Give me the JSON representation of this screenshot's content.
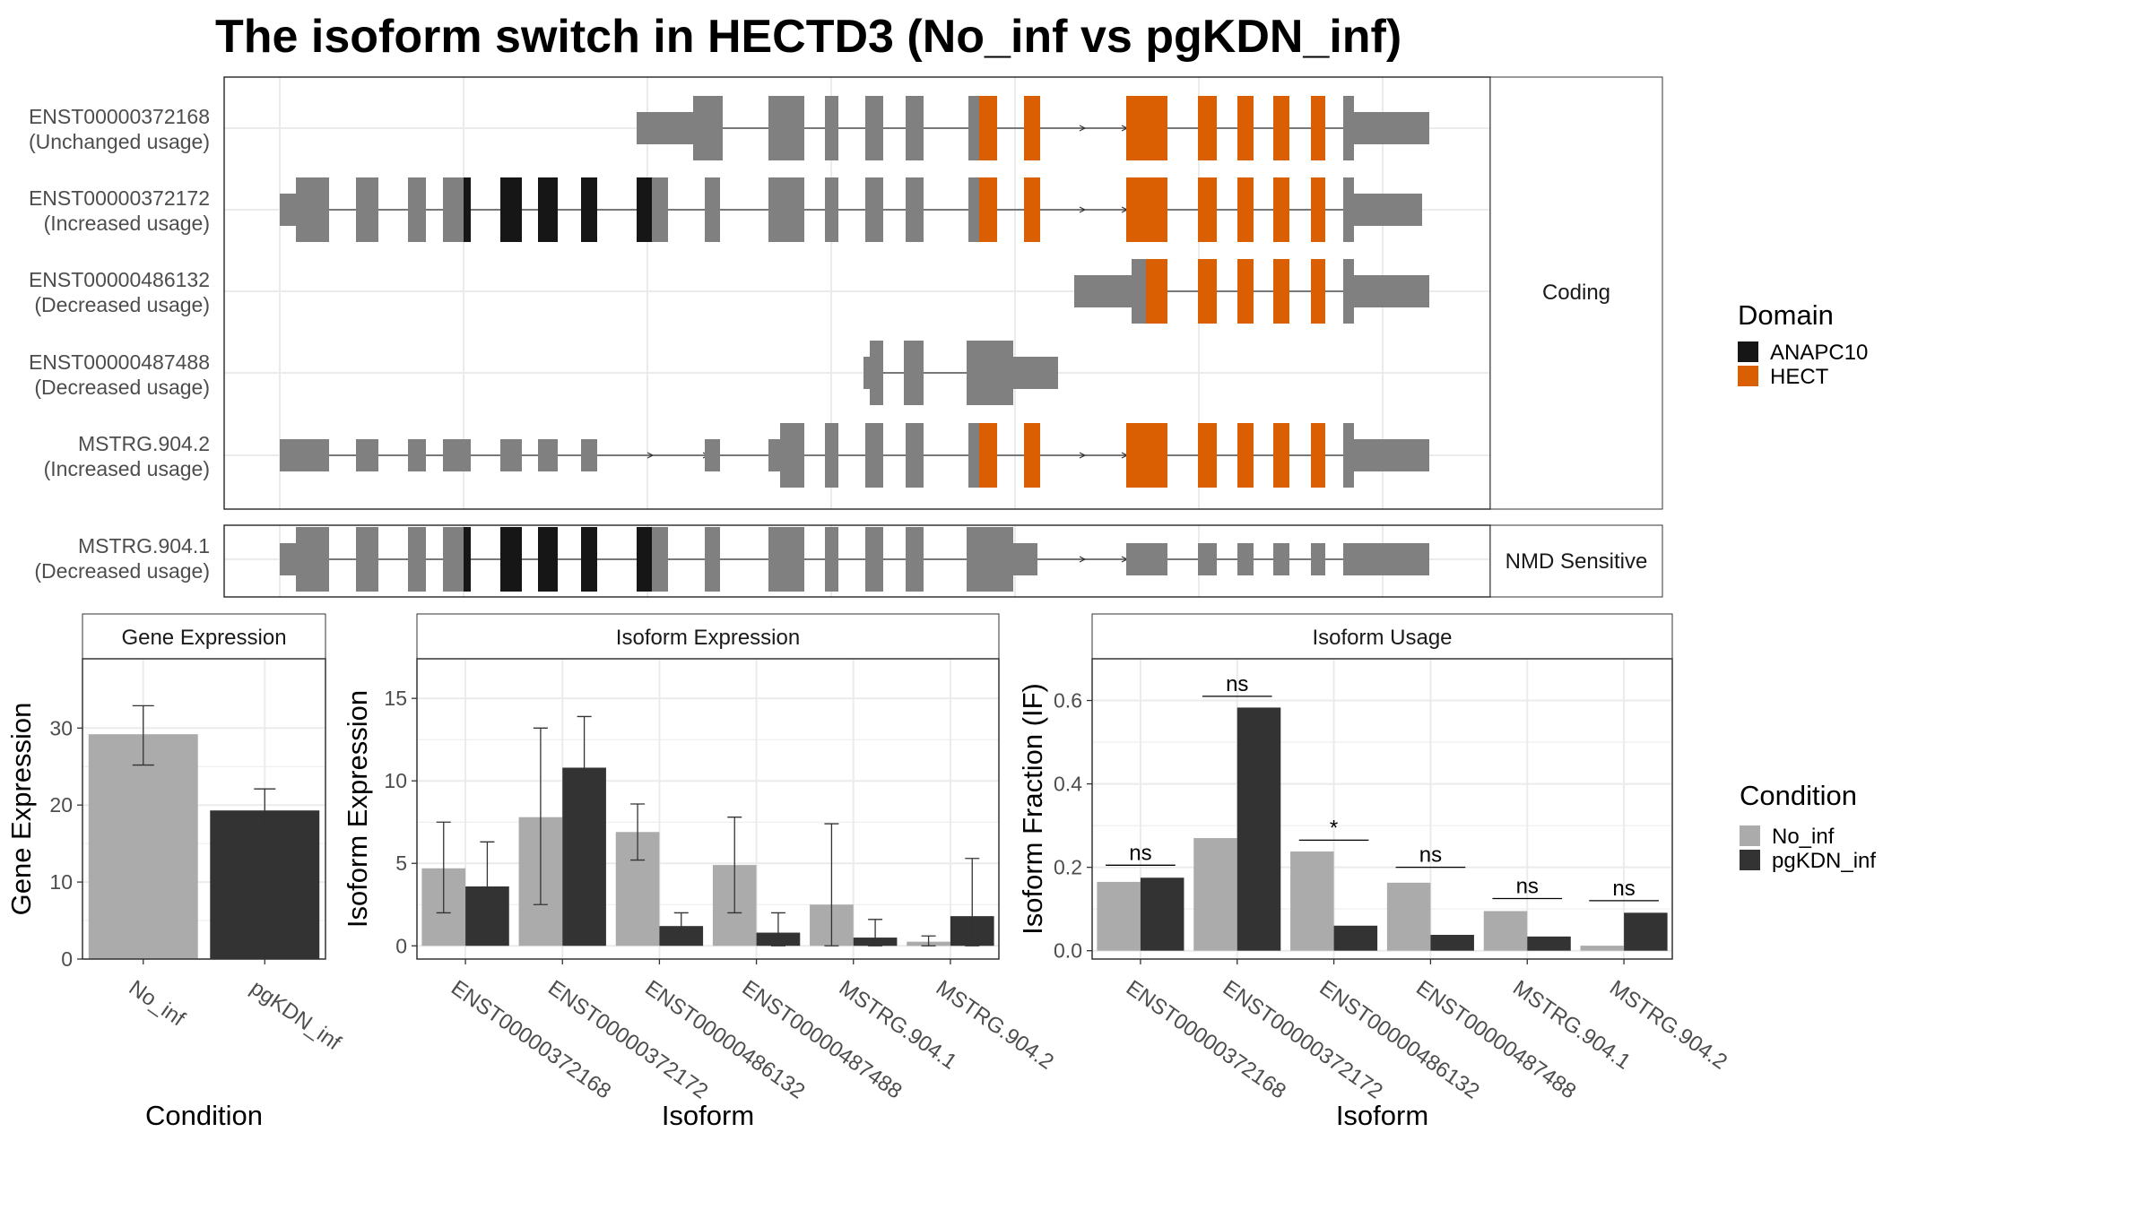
{
  "title": "The isoform switch in HECTD3 (No_inf vs pgKDN_inf)",
  "colors": {
    "ANAPC10": "#161616",
    "HECT": "#D95F02",
    "exon": "#808080",
    "No_inf": "#ABABAB",
    "pgKDN_inf": "#333333",
    "grid": "#EBEBEB",
    "strip_bg": "#FFFFFF",
    "panel_border": "#333333"
  },
  "structure": {
    "facets": [
      {
        "label": "Coding",
        "transcripts": [
          {
            "name": "ENST00000372168",
            "usage": "(Unchanged usage)"
          },
          {
            "name": "ENST00000372172",
            "usage": "(Increased usage)"
          },
          {
            "name": "ENST00000486132",
            "usage": "(Decreased usage)"
          },
          {
            "name": "ENST00000487488",
            "usage": "(Decreased usage)"
          },
          {
            "name": "MSTRG.904.2",
            "usage": "(Increased usage)"
          }
        ]
      },
      {
        "label": "NMD Sensitive",
        "transcripts": [
          {
            "name": "MSTRG.904.1",
            "usage": "(Decreased usage)"
          }
        ]
      }
    ],
    "legend": {
      "title": "Domain",
      "items": [
        "ANAPC10",
        "HECT"
      ]
    }
  },
  "chart_data": [
    {
      "type": "bar",
      "panel": "Gene Expression",
      "title": "Gene Expression",
      "xlabel": "Condition",
      "ylabel": "Gene Expression",
      "categories": [
        "No_inf",
        "pgKDN_inf"
      ],
      "values": [
        29.2,
        19.3
      ],
      "error_low": [
        25.2,
        16.6
      ],
      "error_high": [
        32.9,
        22.1
      ],
      "ylim": [
        0,
        39
      ],
      "yticks": [
        0,
        10,
        20,
        30
      ]
    },
    {
      "type": "bar",
      "panel": "Isoform Expression",
      "title": "Isoform Expression",
      "xlabel": "Isoform",
      "ylabel": "Isoform Expression",
      "categories": [
        "ENST00000372168",
        "ENST00000372172",
        "ENST00000486132",
        "ENST00000487488",
        "MSTRG.904.1",
        "MSTRG.904.2"
      ],
      "series": [
        {
          "name": "No_inf",
          "values": [
            4.7,
            7.8,
            6.9,
            4.9,
            2.5,
            0.25
          ],
          "error_low": [
            2.0,
            2.5,
            5.2,
            2.0,
            0.0,
            0.0
          ],
          "error_high": [
            7.5,
            13.2,
            8.6,
            7.8,
            7.4,
            0.6
          ]
        },
        {
          "name": "pgKDN_inf",
          "values": [
            3.6,
            10.8,
            1.2,
            0.8,
            0.5,
            1.8
          ],
          "error_low": [
            0.9,
            7.7,
            0.4,
            0.0,
            0.0,
            0.0
          ],
          "error_high": [
            6.3,
            13.9,
            2.0,
            2.0,
            1.6,
            5.3
          ]
        }
      ],
      "ylim": [
        -0.8,
        17.4
      ],
      "yticks": [
        0,
        5,
        10,
        15
      ]
    },
    {
      "type": "bar",
      "panel": "Isoform Usage",
      "title": "Isoform Usage",
      "xlabel": "Isoform",
      "ylabel": "Isoform Fraction (IF)",
      "categories": [
        "ENST00000372168",
        "ENST00000372172",
        "ENST00000486132",
        "ENST00000487488",
        "MSTRG.904.1",
        "MSTRG.904.2"
      ],
      "series": [
        {
          "name": "No_inf",
          "values": [
            0.165,
            0.27,
            0.238,
            0.163,
            0.095,
            0.012
          ]
        },
        {
          "name": "pgKDN_inf",
          "values": [
            0.175,
            0.583,
            0.06,
            0.038,
            0.034,
            0.091
          ]
        }
      ],
      "significance": [
        "ns",
        "ns",
        "*",
        "ns",
        "ns",
        "ns"
      ],
      "significance_y": [
        0.205,
        0.61,
        0.265,
        0.2,
        0.125,
        0.12
      ],
      "ylim": [
        -0.02,
        0.7
      ],
      "yticks": [
        0.0,
        0.2,
        0.4,
        0.6
      ],
      "ytick_labels": [
        "0.0",
        "0.2",
        "0.4",
        "0.6"
      ]
    }
  ],
  "condition_legend": {
    "title": "Condition",
    "items": [
      "No_inf",
      "pgKDN_inf"
    ]
  }
}
